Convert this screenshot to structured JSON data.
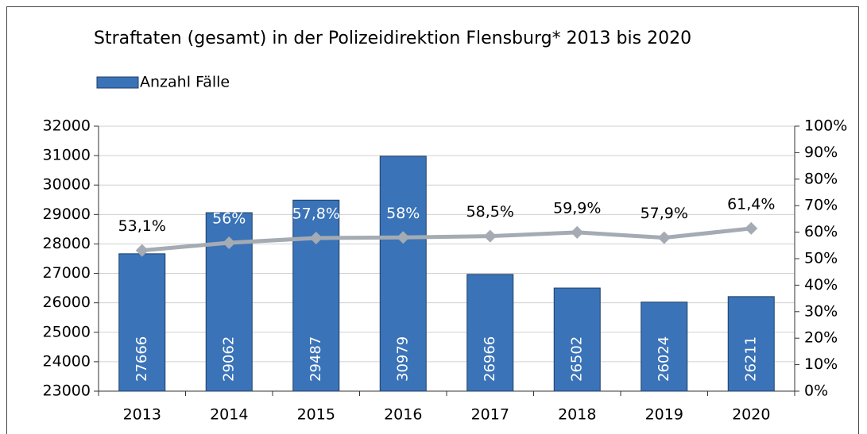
{
  "chart_data": {
    "type": "bar",
    "title": "Straftaten (gesamt) in der Polizeidirektion Flensburg* 2013 bis 2020",
    "categories": [
      "2013",
      "2014",
      "2015",
      "2016",
      "2017",
      "2018",
      "2019",
      "2020"
    ],
    "series": [
      {
        "name": "Anzahl Fälle",
        "type": "bar",
        "color": "#3a73b8",
        "values": [
          27666,
          29062,
          29487,
          30979,
          26966,
          26502,
          26024,
          26211
        ]
      },
      {
        "type": "line",
        "axis": "y2",
        "color": "#a5abb3",
        "values": [
          53.1,
          56,
          57.8,
          58,
          58.5,
          59.9,
          57.9,
          61.4
        ],
        "value_labels": [
          "53,1%",
          "56%",
          "57,8%",
          "58%",
          "58,5%",
          "59,9%",
          "57,9%",
          "61,4%"
        ]
      }
    ],
    "ylim": [
      23000,
      32000
    ],
    "yticks": [
      23000,
      24000,
      25000,
      26000,
      27000,
      28000,
      29000,
      30000,
      31000,
      32000
    ],
    "y2lim": [
      0,
      100
    ],
    "y2ticks": [
      {
        "value": 0,
        "label": "0%"
      },
      {
        "value": 10,
        "label": "10%"
      },
      {
        "value": 20,
        "label": "20%"
      },
      {
        "value": 30,
        "label": "30%"
      },
      {
        "value": 40,
        "label": "40%"
      },
      {
        "value": 50,
        "label": "50%"
      },
      {
        "value": 60,
        "label": "60%"
      },
      {
        "value": 70,
        "label": "70%"
      },
      {
        "value": 80,
        "label": "80%"
      },
      {
        "value": 90,
        "label": "90%"
      },
      {
        "value": 100,
        "label": "100%"
      }
    ],
    "grid": true,
    "legend": "top-left"
  }
}
